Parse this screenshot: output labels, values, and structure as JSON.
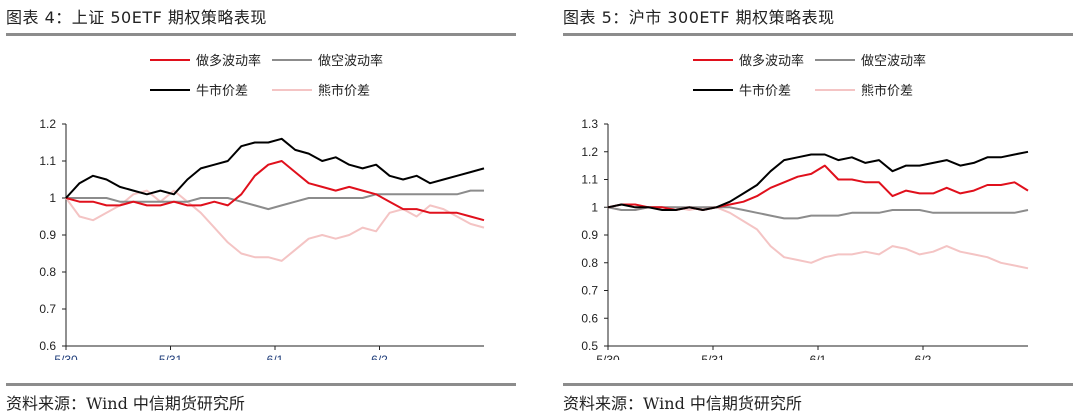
{
  "colors": {
    "short_vol": "#e0101c",
    "long_vol": "#8c8c8c",
    "bull_spread": "#000000",
    "bear_spread": "#f4c4c4"
  },
  "chart_data": [
    {
      "type": "line",
      "title": "图表 4：上证 50ETF 期权策略表现",
      "source": "资料来源：Wind  中信期货研究所",
      "x_ticks": [
        "5/30",
        "5/31",
        "6/1",
        "6/2"
      ],
      "y_ticks": [
        "1.2",
        "1.1",
        "1",
        "0.9",
        "0.8",
        "0.7",
        "0.6"
      ],
      "ylim": [
        0.6,
        1.2
      ],
      "legend_position": "top",
      "series": [
        {
          "name": "做多波动率",
          "color_key": "short_vol",
          "values": [
            1.0,
            0.99,
            0.99,
            0.98,
            0.98,
            0.99,
            0.98,
            0.98,
            0.99,
            0.98,
            0.98,
            0.99,
            0.98,
            1.01,
            1.06,
            1.09,
            1.1,
            1.07,
            1.04,
            1.03,
            1.02,
            1.03,
            1.02,
            1.01,
            0.99,
            0.97,
            0.97,
            0.96,
            0.96,
            0.96,
            0.95,
            0.94
          ]
        },
        {
          "name": "做空波动率",
          "color_key": "long_vol",
          "values": [
            1.0,
            1.0,
            1.0,
            1.0,
            0.99,
            0.99,
            0.99,
            0.99,
            0.99,
            0.99,
            1.0,
            1.0,
            1.0,
            0.99,
            0.98,
            0.97,
            0.98,
            0.99,
            1.0,
            1.0,
            1.0,
            1.0,
            1.0,
            1.01,
            1.01,
            1.01,
            1.01,
            1.01,
            1.01,
            1.01,
            1.02,
            1.02
          ]
        },
        {
          "name": "牛市价差",
          "color_key": "bull_spread",
          "values": [
            1.0,
            1.04,
            1.06,
            1.05,
            1.03,
            1.02,
            1.01,
            1.02,
            1.01,
            1.05,
            1.08,
            1.09,
            1.1,
            1.14,
            1.15,
            1.15,
            1.16,
            1.13,
            1.12,
            1.1,
            1.11,
            1.09,
            1.08,
            1.09,
            1.06,
            1.05,
            1.06,
            1.04,
            1.05,
            1.06,
            1.07,
            1.08
          ]
        },
        {
          "name": "熊市价差",
          "color_key": "bear_spread",
          "values": [
            1.0,
            0.95,
            0.94,
            0.96,
            0.98,
            1.01,
            1.02,
            0.99,
            1.02,
            0.99,
            0.96,
            0.92,
            0.88,
            0.85,
            0.84,
            0.84,
            0.83,
            0.86,
            0.89,
            0.9,
            0.89,
            0.9,
            0.92,
            0.91,
            0.96,
            0.97,
            0.95,
            0.98,
            0.97,
            0.95,
            0.93,
            0.92
          ]
        }
      ]
    },
    {
      "type": "line",
      "title": "图表 5：沪市 300ETF 期权策略表现",
      "source": "资料来源：Wind  中信期货研究所",
      "x_ticks": [
        "5/30",
        "5/31",
        "6/1",
        "6/2"
      ],
      "y_ticks": [
        "1.3",
        "1.2",
        "1.1",
        "1",
        "0.9",
        "0.8",
        "0.7",
        "0.6",
        "0.5"
      ],
      "ylim": [
        0.5,
        1.3
      ],
      "legend_position": "top",
      "series": [
        {
          "name": "做多波动率",
          "color_key": "short_vol",
          "values": [
            1.0,
            1.01,
            1.01,
            1.0,
            1.0,
            0.99,
            1.0,
            0.99,
            1.0,
            1.01,
            1.02,
            1.04,
            1.07,
            1.09,
            1.11,
            1.12,
            1.15,
            1.1,
            1.1,
            1.09,
            1.09,
            1.04,
            1.06,
            1.05,
            1.05,
            1.07,
            1.05,
            1.06,
            1.08,
            1.08,
            1.09,
            1.06
          ]
        },
        {
          "name": "做空波动率",
          "color_key": "long_vol",
          "values": [
            1.0,
            0.99,
            0.99,
            1.0,
            1.0,
            1.0,
            1.0,
            1.0,
            1.0,
            1.0,
            0.99,
            0.98,
            0.97,
            0.96,
            0.96,
            0.97,
            0.97,
            0.97,
            0.98,
            0.98,
            0.98,
            0.99,
            0.99,
            0.99,
            0.98,
            0.98,
            0.98,
            0.98,
            0.98,
            0.98,
            0.98,
            0.99
          ]
        },
        {
          "name": "牛市价差",
          "color_key": "bull_spread",
          "values": [
            1.0,
            1.01,
            1.0,
            1.0,
            0.99,
            0.99,
            1.0,
            0.99,
            1.0,
            1.02,
            1.05,
            1.08,
            1.13,
            1.17,
            1.18,
            1.19,
            1.19,
            1.17,
            1.18,
            1.16,
            1.17,
            1.13,
            1.15,
            1.15,
            1.16,
            1.17,
            1.15,
            1.16,
            1.18,
            1.18,
            1.19,
            1.2
          ]
        },
        {
          "name": "熊市价差",
          "color_key": "bear_spread",
          "values": [
            1.0,
            0.99,
            0.99,
            1.0,
            1.0,
            1.0,
            0.99,
            1.0,
            1.0,
            0.98,
            0.95,
            0.92,
            0.86,
            0.82,
            0.81,
            0.8,
            0.82,
            0.83,
            0.83,
            0.84,
            0.83,
            0.86,
            0.85,
            0.83,
            0.84,
            0.86,
            0.84,
            0.83,
            0.82,
            0.8,
            0.79,
            0.78
          ]
        }
      ]
    }
  ]
}
